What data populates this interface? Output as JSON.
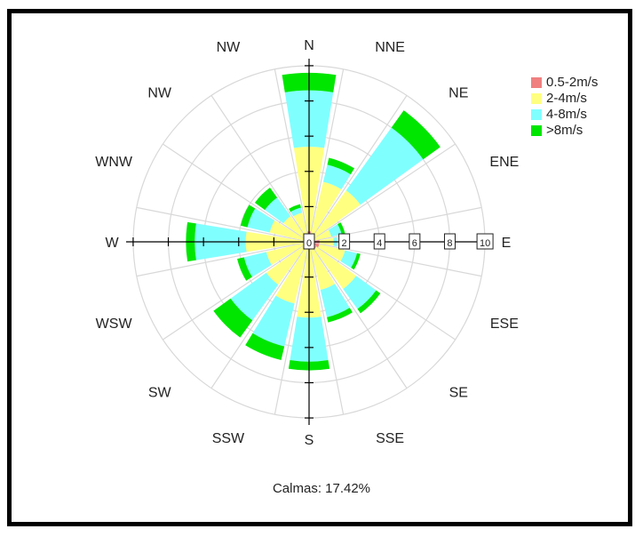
{
  "chart_data": {
    "type": "windrose",
    "calmas_text": "Calmas: 17.42%",
    "directions": [
      "N",
      "NNE",
      "NE",
      "ENE",
      "E",
      "ESE",
      "SE",
      "SSE",
      "S",
      "SSW",
      "SW",
      "WSW",
      "W",
      "WNW",
      "NW",
      "NW"
    ],
    "radial_ticks": [
      "0",
      "2",
      "4",
      "6",
      "8",
      "10"
    ],
    "radial_max": 10.5,
    "series": [
      {
        "name": "0.5-2m/s",
        "color": "#f08080"
      },
      {
        "name": "2-4m/s",
        "color": "#ffff80"
      },
      {
        "name": "4-8m/s",
        "color": "#80ffff"
      },
      {
        "name": ">8m/s",
        "color": "#00e600"
      }
    ],
    "cumulative": [
      [
        0.6,
        5.4,
        8.6,
        9.6
      ],
      [
        0.3,
        3.5,
        4.5,
        4.9
      ],
      [
        0.2,
        3.6,
        8.0,
        9.2
      ],
      [
        0.3,
        1.3,
        1.9,
        2.1
      ],
      [
        0.6,
        1.4,
        1.6,
        1.6
      ],
      [
        0.6,
        2.1,
        2.8,
        3.0
      ],
      [
        0.5,
        3.3,
        4.7,
        5.0
      ],
      [
        0.4,
        2.8,
        4.4,
        4.7
      ],
      [
        0.3,
        4.3,
        6.8,
        7.3
      ],
      [
        0.2,
        3.6,
        6.1,
        6.9
      ],
      [
        0.1,
        3.0,
        5.5,
        6.7
      ],
      [
        0.1,
        2.5,
        3.8,
        4.2
      ],
      [
        0.1,
        3.6,
        6.5,
        7.0
      ],
      [
        0.1,
        2.3,
        3.6,
        4.0
      ],
      [
        0.1,
        1.8,
        3.1,
        3.8
      ],
      [
        0.2,
        1.7,
        2.0,
        2.2
      ]
    ]
  }
}
